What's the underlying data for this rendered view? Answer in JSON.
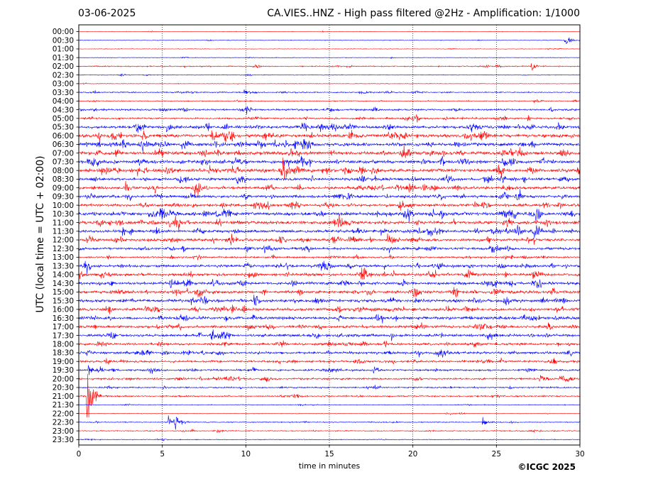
{
  "header": {
    "date": "03-06-2025",
    "title": "CA.VIES..HNZ - High pass filtered @2Hz - Amplification: 1/1000"
  },
  "footer": {
    "copyright": "©ICGC 2025"
  },
  "chart_data": {
    "type": "line",
    "chart_kind": "helicorder",
    "xlabel": "time in minutes",
    "ylabel": "UTC (local time = UTC + 02:00)",
    "xlim": [
      0,
      30
    ],
    "x_ticks": [
      0,
      5,
      10,
      15,
      20,
      25,
      30
    ],
    "grid": "vertical dotted lines at 5-minute intervals",
    "trace_colors": [
      "#ff0000",
      "#0000ff"
    ],
    "rows": [
      "00:00",
      "00:30",
      "01:00",
      "01:30",
      "02:00",
      "02:30",
      "03:00",
      "03:30",
      "04:00",
      "04:30",
      "05:00",
      "05:30",
      "06:00",
      "06:30",
      "07:00",
      "07:30",
      "08:00",
      "08:30",
      "09:00",
      "09:30",
      "10:00",
      "10:30",
      "11:00",
      "11:30",
      "12:00",
      "12:30",
      "13:00",
      "13:30",
      "14:00",
      "14:30",
      "15:00",
      "15:30",
      "16:00",
      "16:30",
      "17:00",
      "17:30",
      "18:00",
      "18:30",
      "19:00",
      "19:30",
      "20:00",
      "20:30",
      "21:00",
      "21:30",
      "22:00",
      "22:30",
      "23:00",
      "23:30"
    ],
    "noise_level": [
      0.5,
      0.6,
      0.6,
      0.6,
      1.2,
      0.7,
      0.6,
      1.2,
      1.0,
      2.0,
      2.0,
      3.0,
      3.5,
      3.5,
      3.5,
      3.5,
      3.5,
      3.0,
      3.0,
      3.0,
      3.0,
      3.5,
      3.5,
      3.0,
      3.0,
      2.5,
      2.0,
      3.0,
      3.0,
      3.0,
      3.0,
      3.0,
      3.0,
      3.0,
      2.8,
      2.8,
      2.5,
      2.5,
      2.3,
      2.0,
      2.0,
      1.5,
      1.5,
      0.8,
      0.6,
      1.0,
      1.0,
      0.8
    ],
    "events": [
      {
        "row": "00:30",
        "minute": 29.1,
        "amplitude": 8
      },
      {
        "row": "02:00",
        "minute": 27.1,
        "amplitude": 6
      },
      {
        "row": "03:30",
        "minute": 9.9,
        "amplitude": 6
      },
      {
        "row": "03:30",
        "minute": 16.8,
        "amplitude": 5
      },
      {
        "row": "04:00",
        "minute": 27.2,
        "amplitude": 7
      },
      {
        "row": "05:00",
        "minute": 19.5,
        "amplitude": 7
      },
      {
        "row": "05:30",
        "minute": 5.3,
        "amplitude": 7
      },
      {
        "row": "06:00",
        "minute": 8.0,
        "amplitude": 8
      },
      {
        "row": "06:30",
        "minute": 12.9,
        "amplitude": 14
      },
      {
        "row": "08:00",
        "minute": 7.8,
        "amplitude": 9
      },
      {
        "row": "09:00",
        "minute": 7.0,
        "amplitude": 7
      },
      {
        "row": "11:30",
        "minute": 18.0,
        "amplitude": 7
      },
      {
        "row": "12:00",
        "minute": 18.5,
        "amplitude": 12
      },
      {
        "row": "12:30",
        "minute": 11.1,
        "amplitude": 9
      },
      {
        "row": "13:30",
        "minute": 26.5,
        "amplitude": 6
      },
      {
        "row": "14:00",
        "minute": 1.3,
        "amplitude": 9
      },
      {
        "row": "14:30",
        "minute": 5.5,
        "amplitude": 9
      },
      {
        "row": "16:00",
        "minute": 4.0,
        "amplitude": 9
      },
      {
        "row": "17:30",
        "minute": 8.0,
        "amplitude": 7
      },
      {
        "row": "19:30",
        "minute": 0.6,
        "amplitude": 9
      },
      {
        "row": "20:00",
        "minute": 9.1,
        "amplitude": 8
      },
      {
        "row": "20:00",
        "minute": 28.8,
        "amplitude": 8
      },
      {
        "row": "21:00",
        "minute": 0.5,
        "amplitude": 60
      },
      {
        "row": "22:30",
        "minute": 5.4,
        "amplitude": 14
      },
      {
        "row": "22:30",
        "minute": 5.8,
        "amplitude": 12
      },
      {
        "row": "22:30",
        "minute": 24.2,
        "amplitude": 6
      },
      {
        "row": "23:00",
        "minute": 8.3,
        "amplitude": 4
      }
    ]
  }
}
